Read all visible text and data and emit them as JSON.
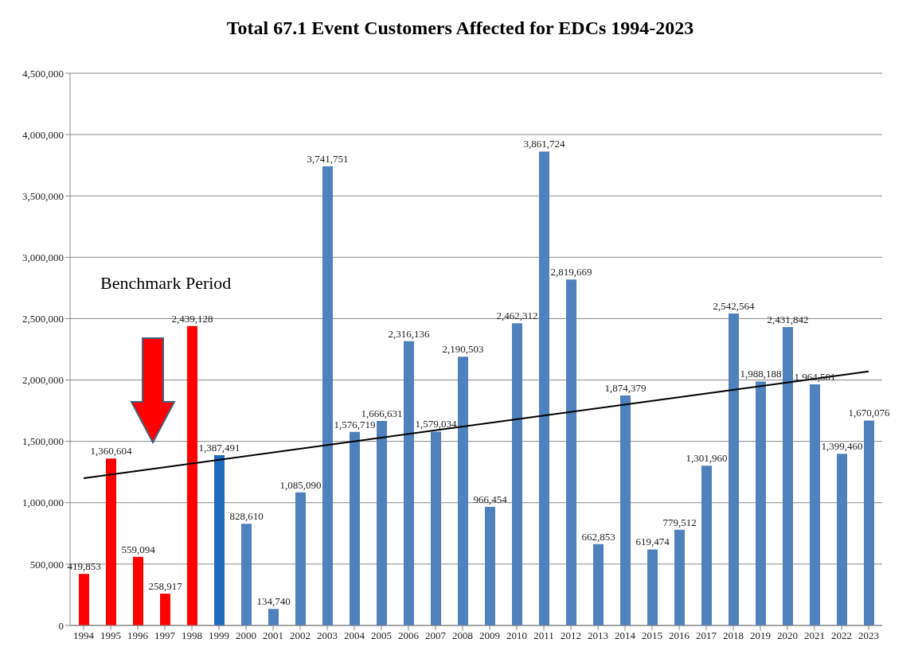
{
  "chart_data": {
    "type": "bar",
    "title": "Total 67.1 Event Customers Affected for EDCs 1994-2023",
    "categories": [
      "1994",
      "1995",
      "1996",
      "1997",
      "1998",
      "1999",
      "2000",
      "2001",
      "2002",
      "2003",
      "2004",
      "2005",
      "2006",
      "2007",
      "2008",
      "2009",
      "2010",
      "2011",
      "2012",
      "2013",
      "2014",
      "2015",
      "2016",
      "2017",
      "2018",
      "2019",
      "2020",
      "2021",
      "2022",
      "2023"
    ],
    "series": [
      {
        "values": [
          419853,
          1360604,
          559094,
          258917,
          2439128,
          1387491,
          828610,
          134740,
          1085090,
          3741751,
          1576719,
          1666631,
          2316136,
          1579034,
          2190503,
          966454,
          2462312,
          3861724,
          2819669,
          662853,
          1874379,
          619474,
          779512,
          1301960,
          2542564,
          1988188,
          2431842,
          1964501,
          1399460,
          1670076
        ],
        "value_labels": [
          "419,853",
          "1,360,604",
          "559,094",
          "258,917",
          "2,439,128",
          "1,387,491",
          "828,610",
          "134,740",
          "1,085,090",
          "3,741,751",
          "1,576,719",
          "1,666,631",
          "2,316,136",
          "1,579,034",
          "2,190,503",
          "966,454",
          "2,462,312",
          "3,861,724",
          "2,819,669",
          "662,853",
          "1,874,379",
          "619,474",
          "779,512",
          "1,301,960",
          "2,542,564",
          "1,988,188",
          "2,431,842",
          "1,964,501",
          "1,399,460",
          "1,670,076"
        ],
        "colors": [
          "#ff0000",
          "#ff0000",
          "#ff0000",
          "#ff0000",
          "#ff0000",
          "#1f6bbf",
          "#4f81bd",
          "#4f81bd",
          "#4f81bd",
          "#4f81bd",
          "#4f81bd",
          "#4f81bd",
          "#4f81bd",
          "#4f81bd",
          "#4f81bd",
          "#4f81bd",
          "#4f81bd",
          "#4f81bd",
          "#4f81bd",
          "#4f81bd",
          "#4f81bd",
          "#4f81bd",
          "#4f81bd",
          "#4f81bd",
          "#4f81bd",
          "#4f81bd",
          "#4f81bd",
          "#4f81bd",
          "#4f81bd",
          "#4f81bd"
        ]
      },
      {
        "type": "line",
        "values": [
          1200000,
          null,
          null,
          null,
          null,
          null,
          null,
          null,
          null,
          null,
          null,
          null,
          null,
          null,
          null,
          null,
          null,
          null,
          null,
          null,
          null,
          null,
          null,
          null,
          null,
          null,
          null,
          null,
          null,
          2070000
        ],
        "color": "#000000"
      }
    ],
    "ylim": [
      0,
      4500000
    ],
    "yticks": [
      {
        "value": 0,
        "label": "0"
      },
      {
        "value": 500000,
        "label": "500,000"
      },
      {
        "value": 1000000,
        "label": "1,000,000"
      },
      {
        "value": 1500000,
        "label": "1,500,000"
      },
      {
        "value": 2000000,
        "label": "2,000,000"
      },
      {
        "value": 2500000,
        "label": "2,500,000"
      },
      {
        "value": 3000000,
        "label": "3,000,000"
      },
      {
        "value": 3500000,
        "label": "3,500,000"
      },
      {
        "value": 4000000,
        "label": "4,000,000"
      },
      {
        "value": 4500000,
        "label": "4,500,000"
      }
    ],
    "grid": "y",
    "marker": "none",
    "line_style": "solid",
    "annotations": [
      "Benchmark Period"
    ]
  }
}
